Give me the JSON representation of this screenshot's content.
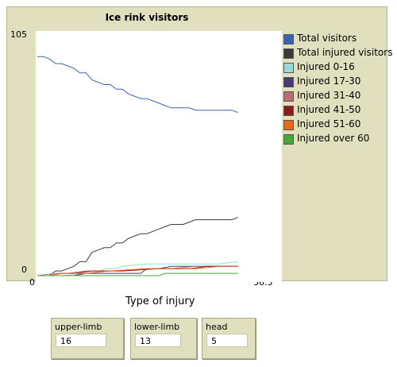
{
  "plot": {
    "title": "Ice rink visitors",
    "xmin_label": "0",
    "xmax_label": "36.3",
    "ymin_label": "0",
    "ymax_label": "105"
  },
  "x_axis_title": "Type of injury",
  "legend": [
    {
      "label": "Total visitors",
      "color": "#3a63b2"
    },
    {
      "label": "Total injured visitors",
      "color": "#3b3b3b"
    },
    {
      "label": "Injured 0-16",
      "color": "#9ad8d8"
    },
    {
      "label": "Injured 17-30",
      "color": "#4b3a78"
    },
    {
      "label": "Injured 31-40",
      "color": "#b86e7a"
    },
    {
      "label": "Injured 41-50",
      "color": "#8b1c1c"
    },
    {
      "label": "Injured 51-60",
      "color": "#e66a1e"
    },
    {
      "label": "Injured over 60",
      "color": "#4aa43a"
    }
  ],
  "monitors": [
    {
      "label": "upper-limb",
      "value": "16"
    },
    {
      "label": "lower-limb",
      "value": "13"
    },
    {
      "label": "head",
      "value": "5"
    }
  ],
  "chart_data": {
    "type": "line",
    "title": "Ice rink visitors",
    "xlabel": "",
    "ylabel": "",
    "xlim": [
      0,
      36.3
    ],
    "ylim": [
      0,
      105
    ],
    "series": [
      {
        "name": "Total visitors",
        "color": "#3a63b2",
        "x": [
          0,
          1,
          2,
          3,
          4,
          5,
          6,
          7,
          8,
          9,
          10,
          11,
          12,
          13,
          14,
          15,
          16,
          17,
          18,
          19,
          20,
          21,
          22,
          23,
          24,
          25,
          26,
          27,
          28,
          29,
          30,
          31,
          32,
          33
        ],
        "y": [
          94,
          94,
          93,
          91,
          91,
          90,
          89,
          87,
          87,
          84,
          83,
          82,
          82,
          80,
          80,
          78,
          77,
          76,
          76,
          75,
          74,
          73,
          72,
          72,
          72,
          72,
          71,
          71,
          71,
          71,
          71,
          71,
          71,
          70
        ]
      },
      {
        "name": "Total injured visitors",
        "color": "#3b3b3b",
        "x": [
          0,
          1,
          2,
          3,
          4,
          5,
          6,
          7,
          8,
          9,
          10,
          11,
          12,
          13,
          14,
          15,
          16,
          17,
          18,
          19,
          20,
          21,
          22,
          23,
          24,
          25,
          26,
          27,
          28,
          29,
          30,
          31,
          32,
          33
        ],
        "y": [
          0,
          0,
          0,
          2,
          2,
          3,
          4,
          6,
          6,
          10,
          11,
          12,
          12,
          14,
          14,
          16,
          17,
          18,
          18,
          19,
          20,
          21,
          22,
          22,
          22,
          23,
          24,
          24,
          24,
          24,
          24,
          24,
          24,
          25
        ]
      },
      {
        "name": "Injured 0-16",
        "color": "#9ad8d8",
        "x": [
          0,
          4,
          8,
          10,
          11,
          13,
          14,
          18,
          20,
          25,
          30,
          33
        ],
        "y": [
          0,
          0,
          1,
          1,
          3,
          3,
          4,
          5,
          5,
          5,
          5,
          6
        ]
      },
      {
        "name": "Injured 17-30",
        "color": "#4b3a78",
        "x": [
          0,
          6,
          8,
          10,
          12,
          14,
          17,
          18,
          20,
          22,
          25,
          30,
          33
        ],
        "y": [
          0,
          0,
          1,
          1,
          1,
          1,
          1,
          3,
          3,
          4,
          4,
          4,
          4
        ]
      },
      {
        "name": "Injured 31-40",
        "color": "#b86e7a",
        "x": [
          0,
          3,
          5,
          8,
          12,
          18,
          22,
          26,
          30,
          33
        ],
        "y": [
          0,
          1,
          1,
          2,
          2,
          3,
          3,
          4,
          4,
          4
        ]
      },
      {
        "name": "Injured 41-50",
        "color": "#8b1c1c",
        "x": [
          0,
          2,
          4,
          6,
          9,
          14,
          20,
          25,
          28,
          33
        ],
        "y": [
          0,
          0,
          1,
          1,
          2,
          2,
          3,
          3,
          4,
          4
        ]
      },
      {
        "name": "Injured 51-60",
        "color": "#e66a1e",
        "x": [
          0,
          2,
          4,
          8,
          12,
          18,
          22,
          26,
          30,
          33
        ],
        "y": [
          0,
          0,
          1,
          1,
          2,
          3,
          3,
          3,
          4,
          4
        ]
      },
      {
        "name": "Injured over 60",
        "color": "#4aa43a",
        "x": [
          0,
          6,
          12,
          20,
          21,
          25,
          30,
          33
        ],
        "y": [
          0,
          0,
          0,
          0,
          1,
          1,
          1,
          1
        ]
      }
    ]
  }
}
